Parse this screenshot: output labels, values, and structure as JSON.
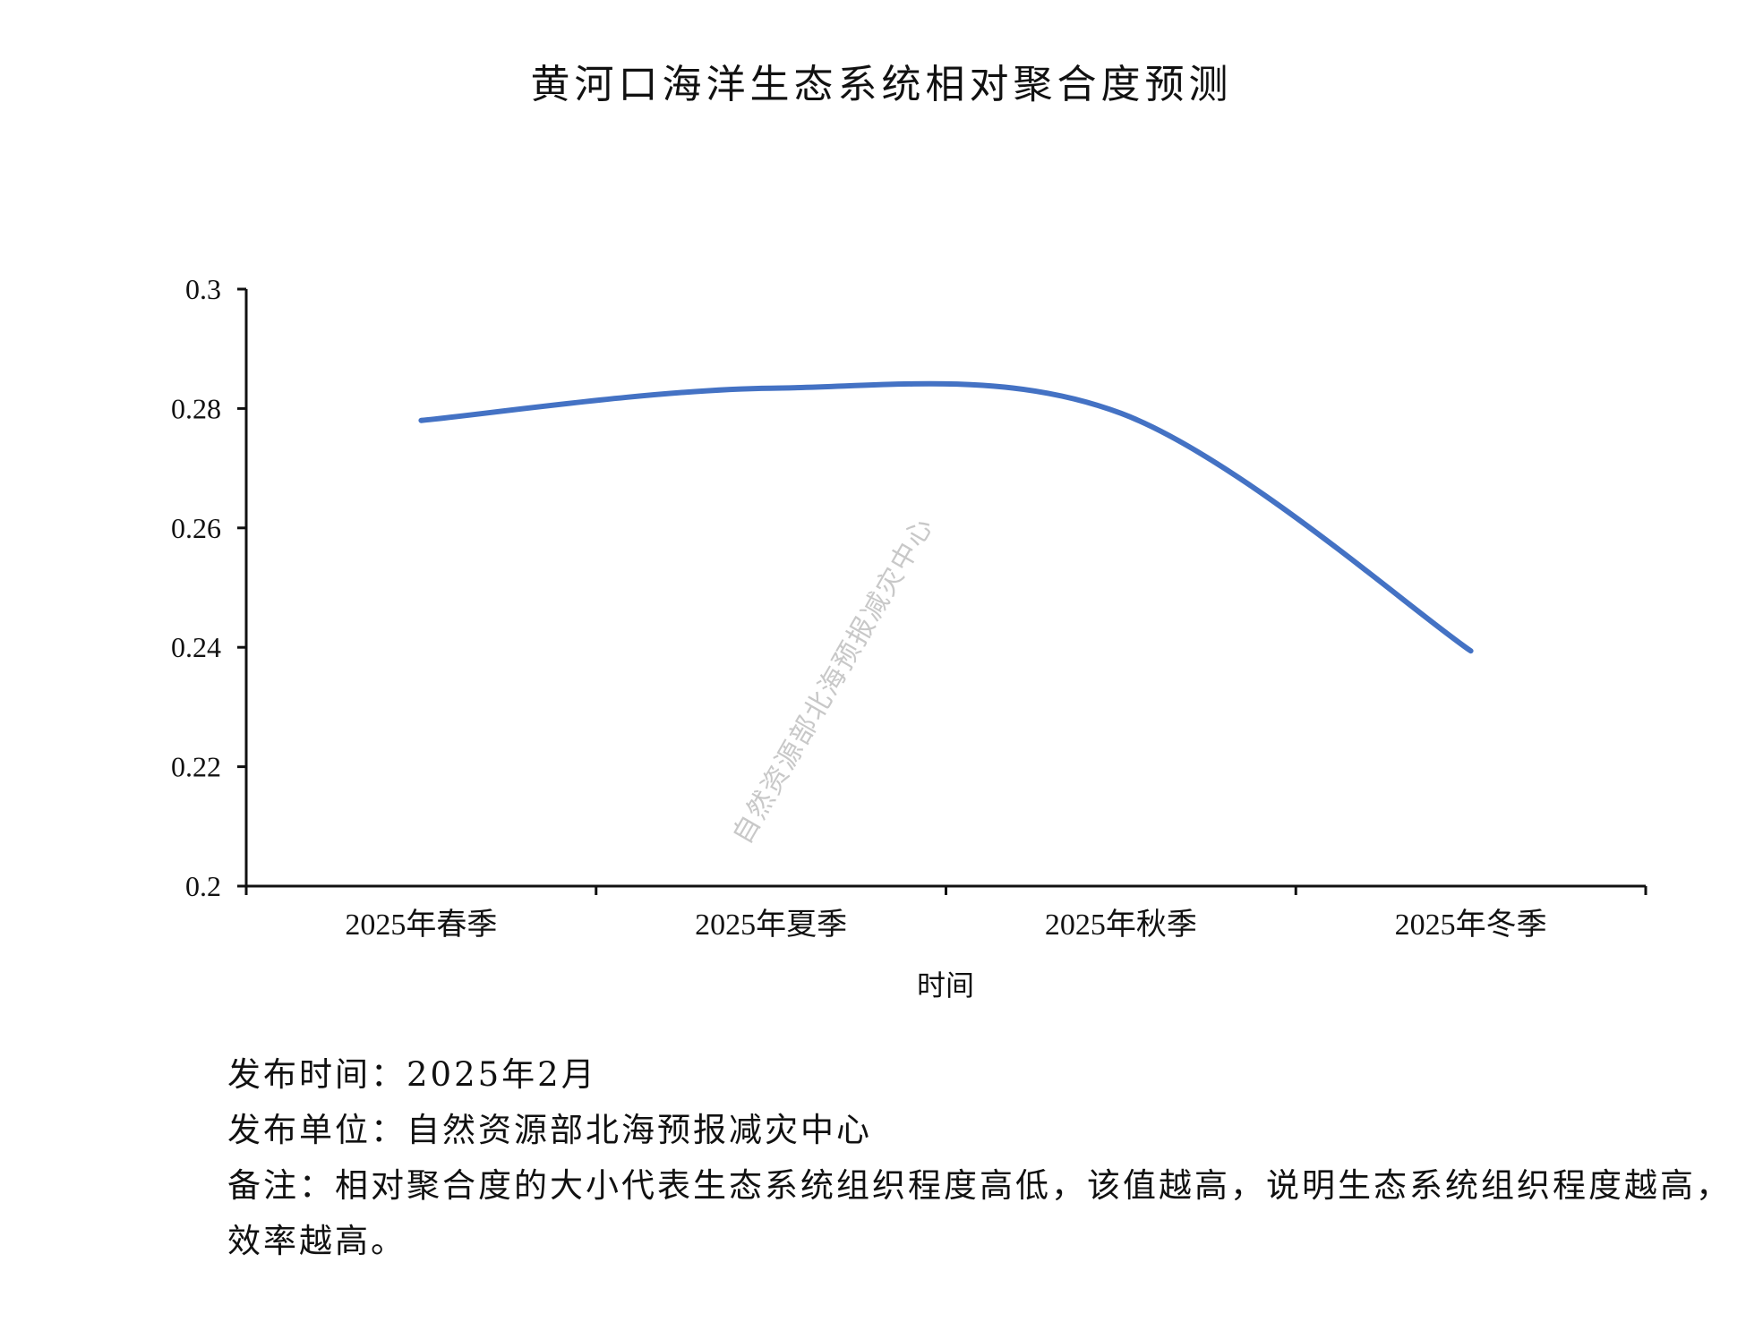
{
  "chart_data": {
    "type": "line",
    "title": "黄河口海洋生态系统相对聚合度预测",
    "xlabel": "时间",
    "ylabel": "",
    "categories": [
      "2025年春季",
      "2025年夏季",
      "2025年秋季",
      "2025年冬季"
    ],
    "series": [
      {
        "values": [
          0.278,
          0.2834,
          0.2792,
          0.2394
        ],
        "color": "#4472C4"
      }
    ],
    "ylim": [
      0.2,
      0.3
    ],
    "yticks": [
      "0.3",
      "0.28",
      "0.26",
      "0.24",
      "0.22",
      "0.2"
    ],
    "smooth": true,
    "grid": false,
    "legend": "none"
  },
  "watermark": "自然资源部北海预报减灾中心",
  "notes": {
    "publish_time": "发布时间：2025年2月",
    "publisher": "发布单位：自然资源部北海预报减灾中心",
    "remark": "备注：相对聚合度的大小代表生态系统组织程度高低，该值越高，说明生态系统组织程度越高，效率越高。"
  }
}
